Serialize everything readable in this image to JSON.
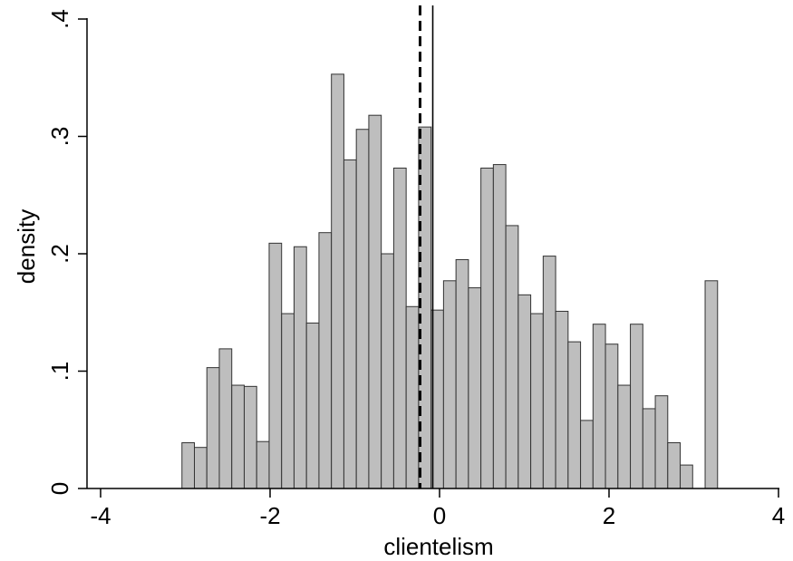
{
  "chart_data": {
    "type": "bar",
    "subtype": "histogram",
    "xlabel": "clientelism",
    "ylabel": "density",
    "xlim": [
      -4,
      4
    ],
    "ylim": [
      0,
      0.4
    ],
    "x_ticks": [
      -4,
      -2,
      0,
      2,
      4
    ],
    "x_tick_labels": [
      "-4",
      "-2",
      "0",
      "2",
      "4"
    ],
    "y_ticks": [
      0,
      0.1,
      0.2,
      0.3,
      0.4
    ],
    "y_tick_labels": [
      "0",
      ".1",
      ".2",
      ".3",
      ".4"
    ],
    "grid": false,
    "bar_color": "#bebebe",
    "bar_edge_color": "#333333",
    "bin_width": 0.147,
    "bin_left_edges": [
      -3.04,
      -2.893,
      -2.746,
      -2.599,
      -2.452,
      -2.305,
      -2.158,
      -2.011,
      -1.864,
      -1.717,
      -1.57,
      -1.423,
      -1.276,
      -1.129,
      -0.982,
      -0.835,
      -0.688,
      -0.541,
      -0.394,
      -0.247,
      -0.1,
      0.047,
      0.194,
      0.341,
      0.488,
      0.635,
      0.782,
      0.929,
      1.076,
      1.223,
      1.37,
      1.517,
      1.664,
      1.811,
      1.958,
      2.105,
      2.252,
      2.399,
      2.546,
      2.693,
      2.84,
      3.134
    ],
    "values": [
      0.039,
      0.035,
      0.103,
      0.119,
      0.088,
      0.087,
      0.04,
      0.209,
      0.149,
      0.206,
      0.141,
      0.218,
      0.353,
      0.28,
      0.306,
      0.318,
      0.2,
      0.273,
      0.155,
      0.308,
      0.152,
      0.177,
      0.195,
      0.171,
      0.273,
      0.276,
      0.224,
      0.165,
      0.149,
      0.198,
      0.151,
      0.125,
      0.058,
      0.14,
      0.123,
      0.088,
      0.14,
      0.068,
      0.079,
      0.039,
      0.02,
      0.177
    ],
    "reference_lines": [
      {
        "x": -0.23,
        "style": "dashed",
        "color": "#000000"
      },
      {
        "x": -0.08,
        "style": "solid",
        "color": "#000000"
      }
    ]
  }
}
